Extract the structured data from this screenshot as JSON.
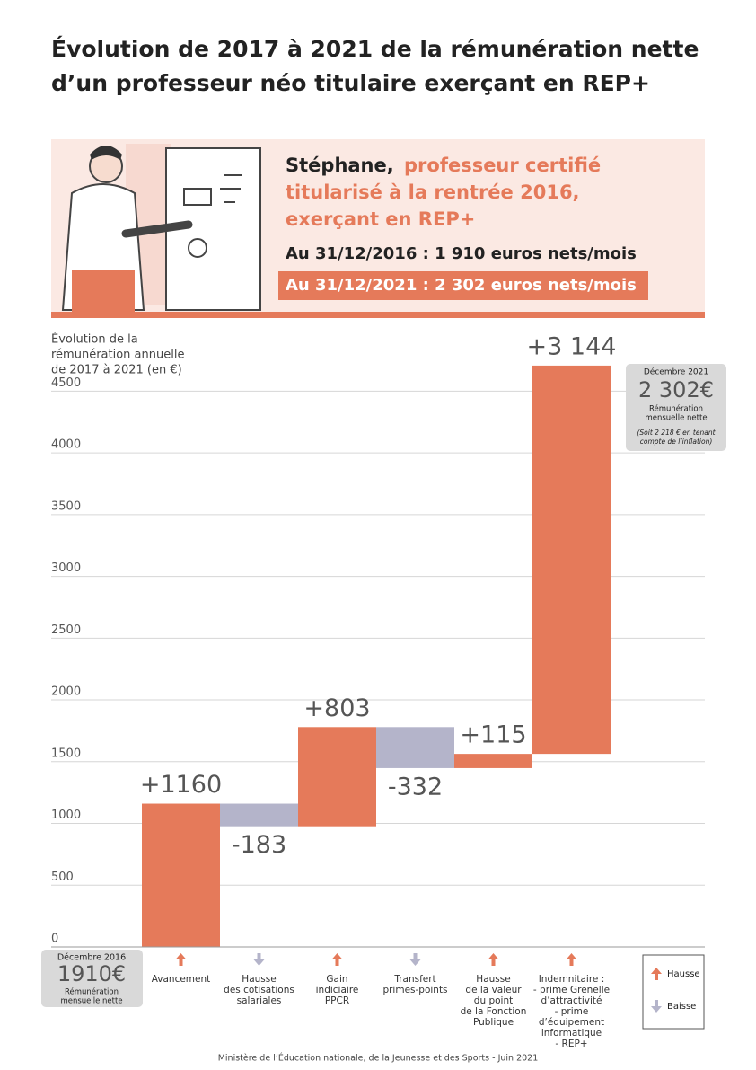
{
  "title_lines": [
    "Évolution de 2017 à 2021 de la rémunération nette",
    "d’un professeur néo titulaire exerçant en REP+"
  ],
  "panel": {
    "name": "Stéphane,",
    "role_lines": [
      "professeur certifié",
      "titularisé à la rentrée 2016,",
      "exerçant en REP+"
    ],
    "line_2016": "Au 31/12/2016 : 1 910 euros nets/mois",
    "line_2021": "Au 31/12/2021 : 2 302 euros nets/mois"
  },
  "chart_data": {
    "type": "waterfall",
    "y_label_lines": [
      "Évolution de la",
      "rémunération annuelle",
      "de 2017 à 2021 (en €)"
    ],
    "categories": [
      [
        "Avancement"
      ],
      [
        "Hausse",
        "des cotisations",
        "salariales"
      ],
      [
        "Gain",
        "indiciaire",
        "PPCR"
      ],
      [
        "Transfert",
        "primes-points"
      ],
      [
        "Hausse",
        "de la valeur",
        "du point",
        "de la Fonction",
        "Publique"
      ],
      [
        "Indemnitaire :",
        "- prime Grenelle",
        "d’attractivité",
        "- prime",
        "d’équipement",
        "informatique",
        "- REP+"
      ]
    ],
    "values": [
      1160,
      -183,
      803,
      -332,
      115,
      3144
    ],
    "value_labels": [
      "+1160",
      "-183",
      "+803",
      "-332",
      "+115",
      "+3 144"
    ],
    "increase_color": "#e57a5a",
    "decrease_color": "#b4b4ca",
    "ylim": [
      0,
      4750
    ],
    "yticks": [
      0,
      500,
      1000,
      1500,
      2000,
      2500,
      3000,
      3500,
      4000,
      4500
    ],
    "grid": true,
    "legend": {
      "increase": "Hausse",
      "decrease": "Baisse"
    },
    "start_box": {
      "date": "Décembre 2016",
      "amount": "1910€",
      "caption_lines": [
        "Rémunération",
        "mensuelle nette"
      ]
    },
    "end_box": {
      "date": "Décembre 2021",
      "amount": "2 302€",
      "caption_lines": [
        "Rémunération",
        "mensuelle nette"
      ],
      "note_lines": [
        "(Soit 2 218 € en tenant",
        "compte de l’inflation)"
      ]
    }
  },
  "source": "Ministère de l’Éducation nationale, de la Jeunesse et des Sports - Juin 2021"
}
